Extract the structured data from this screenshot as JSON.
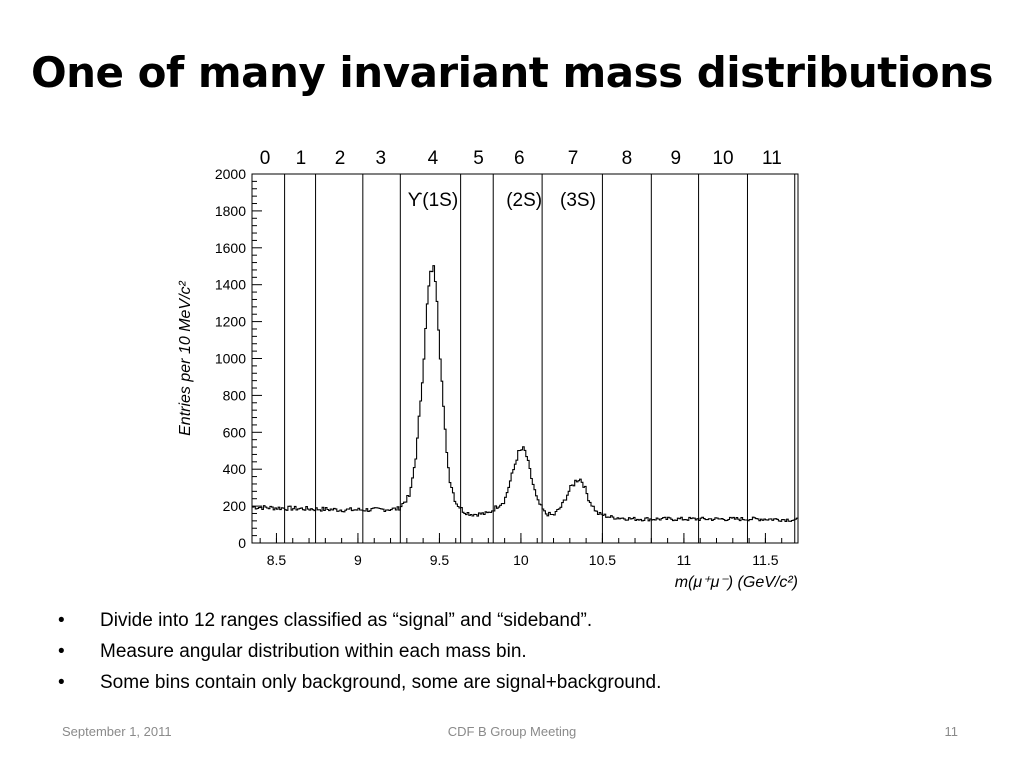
{
  "slide": {
    "title": "One of many invariant mass distributions",
    "bullets": [
      "Divide into 12 ranges classified as “signal” and “sideband”.",
      "Measure angular distribution within each mass bin.",
      "Some bins contain only background, some are signal+background."
    ],
    "bullet_marker": "•",
    "footer": {
      "date": "September 1, 2011",
      "center": "CDF B Group Meeting",
      "page": "11"
    }
  },
  "chart_data": {
    "type": "line",
    "title": "",
    "xlabel": "m(μ⁺μ⁻)  (GeV/c²)",
    "ylabel": "Entries per 10 MeV/c²",
    "xlim": [
      8.35,
      11.7
    ],
    "ylim": [
      0,
      2000
    ],
    "x_ticks": [
      "8.5",
      "9",
      "9.5",
      "10",
      "10.5",
      "11",
      "11.5"
    ],
    "x_tick_values": [
      8.5,
      9.0,
      9.5,
      10.0,
      10.5,
      11.0,
      11.5
    ],
    "y_ticks": [
      "0",
      "200",
      "400",
      "600",
      "800",
      "1000",
      "1200",
      "1400",
      "1600",
      "1800",
      "2000"
    ],
    "y_tick_values": [
      0,
      200,
      400,
      600,
      800,
      1000,
      1200,
      1400,
      1600,
      1800,
      2000
    ],
    "bin_labels": [
      "0",
      "1",
      "2",
      "3",
      "4",
      "5",
      "6",
      "7",
      "8",
      "9",
      "10",
      "11"
    ],
    "bin_edges": [
      8.55,
      8.74,
      9.03,
      9.26,
      9.63,
      9.83,
      10.13,
      10.5,
      10.8,
      11.09,
      11.39,
      11.68
    ],
    "peak_labels": [
      {
        "text": "ϒ(1S)",
        "x": 9.46
      },
      {
        "text": "(2S)",
        "x": 10.02
      },
      {
        "text": "(3S)",
        "x": 10.35
      }
    ],
    "series": [
      {
        "x": [
          8.35,
          8.5,
          8.7,
          8.9,
          9.1,
          9.25,
          9.32,
          9.36,
          9.4,
          9.43,
          9.45,
          9.46,
          9.48,
          9.5,
          9.53,
          9.56,
          9.6,
          9.65,
          9.7,
          9.8,
          9.9,
          9.95,
          9.98,
          10.01,
          10.03,
          10.06,
          10.1,
          10.15,
          10.2,
          10.25,
          10.3,
          10.34,
          10.36,
          10.38,
          10.42,
          10.47,
          10.55,
          10.7,
          10.9,
          11.1,
          11.3,
          11.5,
          11.7
        ],
        "y": [
          195,
          190,
          185,
          180,
          180,
          185,
          260,
          500,
          950,
          1350,
          1480,
          1500,
          1420,
          1100,
          650,
          360,
          220,
          170,
          155,
          160,
          230,
          380,
          480,
          510,
          490,
          370,
          230,
          160,
          150,
          200,
          290,
          340,
          350,
          330,
          230,
          160,
          140,
          130,
          130,
          130,
          130,
          130,
          125
        ]
      }
    ],
    "grid": false,
    "legend": "none"
  }
}
